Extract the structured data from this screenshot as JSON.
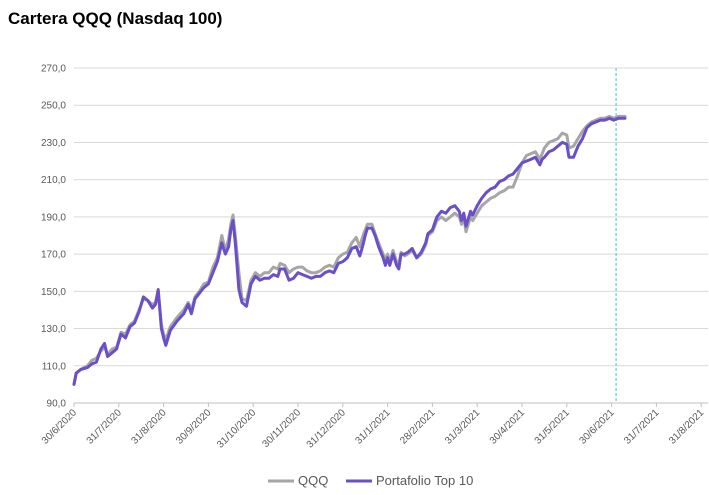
{
  "chart_data": {
    "type": "line",
    "title": "Cartera QQQ (Nasdaq 100)",
    "ylim": [
      90,
      270
    ],
    "y_ticks": [
      "270,0",
      "250,0",
      "230,0",
      "210,0",
      "190,0",
      "170,0",
      "150,0",
      "130,0",
      "110,0",
      "90,0"
    ],
    "y_tick_values": [
      270,
      250,
      230,
      210,
      190,
      170,
      150,
      130,
      110,
      90
    ],
    "x_tick_labels": [
      "30/6/2020",
      "31/7/2020",
      "31/8/2020",
      "30/9/2020",
      "31/10/2020",
      "30/11/2020",
      "31/12/2020",
      "31/1/2021",
      "28/2/2021",
      "31/3/2021",
      "30/4/2021",
      "31/5/2021",
      "30/6/2021",
      "31/7/2021",
      "31/8/2021"
    ],
    "x_tick_months": [
      0,
      1,
      2,
      3,
      4,
      5,
      6,
      7,
      8,
      9,
      10,
      11,
      12,
      13,
      14
    ],
    "xlim_months": [
      0,
      14.3
    ],
    "vertical_marker_month": 12.1,
    "grid": true,
    "legend_position": "bottom",
    "series": [
      {
        "name": "QQQ",
        "color": "#a6a6a6",
        "points": [
          [
            0,
            100
          ],
          [
            0.05,
            106
          ],
          [
            0.15,
            108
          ],
          [
            0.3,
            110
          ],
          [
            0.4,
            113
          ],
          [
            0.5,
            114
          ],
          [
            0.6,
            118
          ],
          [
            0.68,
            120
          ],
          [
            0.75,
            116
          ],
          [
            0.85,
            119
          ],
          [
            0.95,
            120
          ],
          [
            1.05,
            128
          ],
          [
            1.15,
            127
          ],
          [
            1.25,
            132
          ],
          [
            1.35,
            134
          ],
          [
            1.45,
            140
          ],
          [
            1.55,
            146
          ],
          [
            1.65,
            145
          ],
          [
            1.75,
            143
          ],
          [
            1.82,
            144
          ],
          [
            1.88,
            150
          ],
          [
            1.95,
            132
          ],
          [
            2.0,
            127
          ],
          [
            2.05,
            124
          ],
          [
            2.15,
            131
          ],
          [
            2.3,
            136
          ],
          [
            2.45,
            140
          ],
          [
            2.55,
            144
          ],
          [
            2.62,
            140
          ],
          [
            2.7,
            147
          ],
          [
            2.8,
            150
          ],
          [
            2.9,
            154
          ],
          [
            3.0,
            155
          ],
          [
            3.1,
            163
          ],
          [
            3.2,
            168
          ],
          [
            3.3,
            180
          ],
          [
            3.38,
            172
          ],
          [
            3.45,
            178
          ],
          [
            3.5,
            186
          ],
          [
            3.55,
            191
          ],
          [
            3.6,
            180
          ],
          [
            3.68,
            160
          ],
          [
            3.75,
            146
          ],
          [
            3.85,
            145
          ],
          [
            3.95,
            156
          ],
          [
            4.05,
            160
          ],
          [
            4.15,
            158
          ],
          [
            4.25,
            160
          ],
          [
            4.35,
            160
          ],
          [
            4.45,
            163
          ],
          [
            4.55,
            162
          ],
          [
            4.6,
            165
          ],
          [
            4.7,
            164
          ],
          [
            4.8,
            160
          ],
          [
            4.9,
            162
          ],
          [
            5.0,
            163
          ],
          [
            5.1,
            163
          ],
          [
            5.2,
            161
          ],
          [
            5.3,
            160
          ],
          [
            5.4,
            160
          ],
          [
            5.5,
            161
          ],
          [
            5.6,
            163
          ],
          [
            5.7,
            164
          ],
          [
            5.8,
            163
          ],
          [
            5.9,
            168
          ],
          [
            6.0,
            170
          ],
          [
            6.1,
            171
          ],
          [
            6.2,
            176
          ],
          [
            6.3,
            179
          ],
          [
            6.38,
            174
          ],
          [
            6.45,
            180
          ],
          [
            6.5,
            183
          ],
          [
            6.55,
            186
          ],
          [
            6.65,
            186
          ],
          [
            6.72,
            181
          ],
          [
            6.8,
            176
          ],
          [
            6.9,
            170
          ],
          [
            6.95,
            167
          ],
          [
            7.0,
            170
          ],
          [
            7.05,
            166
          ],
          [
            7.12,
            172
          ],
          [
            7.2,
            166
          ],
          [
            7.25,
            164
          ],
          [
            7.3,
            171
          ],
          [
            7.38,
            169
          ],
          [
            7.45,
            170
          ],
          [
            7.55,
            172
          ],
          [
            7.65,
            168
          ],
          [
            7.75,
            170
          ],
          [
            7.85,
            175
          ],
          [
            7.9,
            180
          ],
          [
            8.0,
            182
          ],
          [
            8.1,
            188
          ],
          [
            8.2,
            190
          ],
          [
            8.3,
            188
          ],
          [
            8.4,
            190
          ],
          [
            8.5,
            192
          ],
          [
            8.6,
            190
          ],
          [
            8.65,
            186
          ],
          [
            8.7,
            190
          ],
          [
            8.75,
            182
          ],
          [
            8.85,
            190
          ],
          [
            8.9,
            188
          ],
          [
            9.0,
            192
          ],
          [
            9.1,
            196
          ],
          [
            9.2,
            198
          ],
          [
            9.3,
            200
          ],
          [
            9.4,
            201
          ],
          [
            9.5,
            203
          ],
          [
            9.6,
            204
          ],
          [
            9.7,
            206
          ],
          [
            9.8,
            206
          ],
          [
            9.9,
            212
          ],
          [
            10.0,
            219
          ],
          [
            10.1,
            223
          ],
          [
            10.2,
            224
          ],
          [
            10.3,
            225
          ],
          [
            10.4,
            221
          ],
          [
            10.45,
            224
          ],
          [
            10.5,
            227
          ],
          [
            10.6,
            230
          ],
          [
            10.7,
            231
          ],
          [
            10.8,
            232
          ],
          [
            10.9,
            235
          ],
          [
            11.0,
            234
          ],
          [
            11.05,
            227
          ],
          [
            11.15,
            228
          ],
          [
            11.25,
            232
          ],
          [
            11.35,
            236
          ],
          [
            11.45,
            239
          ],
          [
            11.55,
            241
          ],
          [
            11.65,
            242
          ],
          [
            11.75,
            243
          ],
          [
            11.85,
            243
          ],
          [
            11.95,
            244
          ],
          [
            12.05,
            243
          ],
          [
            12.15,
            244
          ],
          [
            12.25,
            244
          ],
          [
            12.3,
            244
          ]
        ]
      },
      {
        "name": "Portafolio Top 10",
        "color": "#6a4fc8",
        "points": [
          [
            0,
            100
          ],
          [
            0.05,
            106
          ],
          [
            0.15,
            108
          ],
          [
            0.3,
            109
          ],
          [
            0.4,
            111
          ],
          [
            0.5,
            112
          ],
          [
            0.6,
            119
          ],
          [
            0.68,
            122
          ],
          [
            0.75,
            115
          ],
          [
            0.85,
            117
          ],
          [
            0.95,
            119
          ],
          [
            1.05,
            127
          ],
          [
            1.15,
            125
          ],
          [
            1.25,
            131
          ],
          [
            1.35,
            133
          ],
          [
            1.45,
            139
          ],
          [
            1.55,
            147
          ],
          [
            1.65,
            145
          ],
          [
            1.75,
            141
          ],
          [
            1.82,
            143
          ],
          [
            1.88,
            151
          ],
          [
            1.95,
            130
          ],
          [
            2.0,
            125
          ],
          [
            2.05,
            121
          ],
          [
            2.15,
            129
          ],
          [
            2.3,
            134
          ],
          [
            2.45,
            138
          ],
          [
            2.55,
            143
          ],
          [
            2.62,
            138
          ],
          [
            2.7,
            146
          ],
          [
            2.8,
            149
          ],
          [
            2.9,
            152
          ],
          [
            3.0,
            154
          ],
          [
            3.1,
            160
          ],
          [
            3.2,
            166
          ],
          [
            3.3,
            176
          ],
          [
            3.38,
            170
          ],
          [
            3.45,
            174
          ],
          [
            3.5,
            183
          ],
          [
            3.55,
            188
          ],
          [
            3.6,
            176
          ],
          [
            3.68,
            151
          ],
          [
            3.75,
            144
          ],
          [
            3.85,
            142
          ],
          [
            3.95,
            154
          ],
          [
            4.05,
            158
          ],
          [
            4.15,
            156
          ],
          [
            4.25,
            157
          ],
          [
            4.35,
            157
          ],
          [
            4.45,
            159
          ],
          [
            4.55,
            158
          ],
          [
            4.6,
            162
          ],
          [
            4.7,
            162
          ],
          [
            4.8,
            156
          ],
          [
            4.9,
            157
          ],
          [
            5.0,
            160
          ],
          [
            5.1,
            159
          ],
          [
            5.2,
            158
          ],
          [
            5.3,
            157
          ],
          [
            5.4,
            158
          ],
          [
            5.5,
            158
          ],
          [
            5.6,
            160
          ],
          [
            5.7,
            161
          ],
          [
            5.8,
            160
          ],
          [
            5.9,
            165
          ],
          [
            6.0,
            166
          ],
          [
            6.1,
            168
          ],
          [
            6.2,
            173
          ],
          [
            6.3,
            174
          ],
          [
            6.38,
            169
          ],
          [
            6.45,
            175
          ],
          [
            6.5,
            180
          ],
          [
            6.55,
            184
          ],
          [
            6.65,
            184
          ],
          [
            6.72,
            180
          ],
          [
            6.8,
            174
          ],
          [
            6.9,
            168
          ],
          [
            6.95,
            164
          ],
          [
            7.0,
            168
          ],
          [
            7.05,
            164
          ],
          [
            7.12,
            170
          ],
          [
            7.2,
            164
          ],
          [
            7.25,
            162
          ],
          [
            7.3,
            170
          ],
          [
            7.38,
            170
          ],
          [
            7.45,
            171
          ],
          [
            7.55,
            173
          ],
          [
            7.65,
            168
          ],
          [
            7.75,
            171
          ],
          [
            7.85,
            176
          ],
          [
            7.9,
            181
          ],
          [
            8.0,
            183
          ],
          [
            8.1,
            190
          ],
          [
            8.2,
            193
          ],
          [
            8.3,
            192
          ],
          [
            8.4,
            195
          ],
          [
            8.5,
            196
          ],
          [
            8.6,
            193
          ],
          [
            8.65,
            188
          ],
          [
            8.7,
            192
          ],
          [
            8.75,
            185
          ],
          [
            8.85,
            193
          ],
          [
            8.9,
            191
          ],
          [
            9.0,
            196
          ],
          [
            9.1,
            200
          ],
          [
            9.2,
            203
          ],
          [
            9.3,
            205
          ],
          [
            9.4,
            206
          ],
          [
            9.5,
            209
          ],
          [
            9.6,
            210
          ],
          [
            9.7,
            212
          ],
          [
            9.8,
            213
          ],
          [
            9.9,
            216
          ],
          [
            10.0,
            219
          ],
          [
            10.1,
            220
          ],
          [
            10.2,
            221
          ],
          [
            10.3,
            222
          ],
          [
            10.4,
            218
          ],
          [
            10.45,
            221
          ],
          [
            10.5,
            222
          ],
          [
            10.6,
            225
          ],
          [
            10.7,
            226
          ],
          [
            10.8,
            228
          ],
          [
            10.9,
            230
          ],
          [
            11.0,
            229
          ],
          [
            11.05,
            222
          ],
          [
            11.15,
            222
          ],
          [
            11.25,
            228
          ],
          [
            11.35,
            232
          ],
          [
            11.45,
            238
          ],
          [
            11.55,
            240
          ],
          [
            11.65,
            241
          ],
          [
            11.75,
            242
          ],
          [
            11.85,
            242
          ],
          [
            11.95,
            243
          ],
          [
            12.05,
            242
          ],
          [
            12.15,
            243
          ],
          [
            12.25,
            243
          ],
          [
            12.3,
            243
          ]
        ]
      }
    ]
  }
}
